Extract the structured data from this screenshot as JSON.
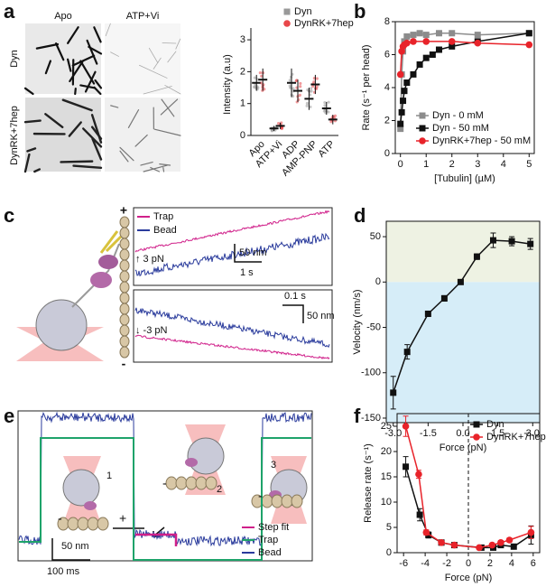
{
  "figure": {
    "panel_labels": [
      "a",
      "b",
      "c",
      "d",
      "e",
      "f"
    ],
    "image_columns": [
      "Apo",
      "ATP+Vi"
    ],
    "image_rows": [
      "Dyn",
      "DynRK+7hep"
    ],
    "trace_c": {
      "legend": [
        "Trap",
        "Bead"
      ],
      "top_force": "↑ 3 pN",
      "top_scale_y": "50 nm",
      "top_scale_x": "1 s",
      "bottom_force": "↓ -3 pN",
      "bottom_scale_x": "0.1 s",
      "bottom_scale_y": "50 nm",
      "plus": "+",
      "minus": "-"
    },
    "trace_e": {
      "states": [
        "1",
        "2",
        "3"
      ],
      "signs": [
        "-",
        "+",
        "-",
        "-"
      ],
      "scale_y": "50 nm",
      "scale_x": "100 ms",
      "legend": [
        "Step fit",
        "Trap",
        "Bead"
      ]
    }
  },
  "chart_data": [
    {
      "type": "dot",
      "ylabel": "Intensity (a.u)",
      "categories": [
        "Apo",
        "ATP+Vi",
        "ADP",
        "AMP-PNP",
        "ATP"
      ],
      "series": [
        {
          "name": "Dyn",
          "color": "#999999",
          "marker": "square",
          "values": [
            1.65,
            0.22,
            1.65,
            1.15,
            0.85
          ],
          "errors": [
            0.25,
            0.08,
            0.45,
            0.35,
            0.2
          ]
        },
        {
          "name": "DynRK+7hep",
          "color": "#e8474a",
          "marker": "circle",
          "values": [
            1.75,
            0.3,
            1.4,
            1.6,
            0.5
          ],
          "errors": [
            0.35,
            0.1,
            0.35,
            0.3,
            0.15
          ]
        }
      ],
      "ylim": [
        0,
        3.2
      ],
      "yticks": [
        0,
        1,
        2,
        3
      ],
      "legend": "top"
    },
    {
      "type": "line",
      "xlabel": "[Tubulin] (µM)",
      "ylabel": "Rate (s⁻¹ per head)",
      "series": [
        {
          "name": "Dyn - 0 mM",
          "color": "#8c8c8c",
          "marker": "square",
          "x": [
            0,
            0.05,
            0.1,
            0.15,
            0.25,
            0.5,
            0.75,
            1,
            1.5,
            2,
            3,
            5
          ],
          "values": [
            1.5,
            4.8,
            6.2,
            6.8,
            7.1,
            7.2,
            7.3,
            7.2,
            7.3,
            7.3,
            7.2,
            7.3
          ]
        },
        {
          "name": "Dyn - 50 mM",
          "color": "#111111",
          "marker": "square",
          "x": [
            0,
            0.05,
            0.1,
            0.15,
            0.25,
            0.5,
            0.75,
            1,
            1.25,
            1.5,
            2,
            3,
            5
          ],
          "values": [
            1.8,
            2.5,
            3.2,
            3.8,
            4.3,
            4.8,
            5.4,
            5.8,
            6.0,
            6.3,
            6.5,
            6.8,
            7.3
          ]
        },
        {
          "name": "DynRK+7hep - 50 mM",
          "color": "#e8232a",
          "marker": "circle",
          "x": [
            0,
            0.05,
            0.1,
            0.15,
            0.25,
            0.5,
            1,
            2,
            3,
            5
          ],
          "values": [
            4.8,
            6.2,
            6.5,
            6.6,
            6.7,
            6.8,
            6.8,
            6.8,
            6.7,
            6.6
          ]
        }
      ],
      "xlim": [
        -0.2,
        5.2
      ],
      "xticks": [
        0,
        1,
        2,
        3,
        4,
        5
      ],
      "ylim": [
        0,
        8
      ],
      "yticks": [
        0,
        2,
        4,
        6,
        8
      ],
      "legend": "lower right"
    },
    {
      "type": "line",
      "xlabel": "Force (pN)",
      "ylabel": "Velocity (nm/s)",
      "series": [
        {
          "color": "#111111",
          "marker": "square",
          "x": [
            -3.0,
            -2.4,
            -1.5,
            -0.8,
            -0.1,
            0.6,
            1.3,
            2.1,
            2.9
          ],
          "values": [
            -122,
            -77,
            -35,
            -18,
            0,
            28,
            46,
            45,
            42
          ],
          "errors": [
            18,
            8,
            3,
            3,
            2,
            3,
            8,
            5,
            6
          ]
        }
      ],
      "xlim": [
        -3.3,
        3.3
      ],
      "xticks": [
        {
          "value": -3,
          "label": "-3.0"
        },
        {
          "value": -1.5,
          "label": "-1.5"
        },
        {
          "value": 0,
          "label": "0.0"
        },
        {
          "value": 1.5,
          "label": "1.5"
        },
        {
          "value": 3,
          "label": "3.0"
        }
      ],
      "ylim": [
        -155,
        67
      ],
      "yticks": [
        -150,
        -100,
        -50,
        0,
        50
      ],
      "shade": [
        "#eef2e3",
        "#d6edf8"
      ]
    },
    {
      "type": "line",
      "xlabel": "Force (pN)",
      "ylabel": "Release rate (s⁻¹)",
      "series": [
        {
          "name": "Dyn",
          "color": "#111111",
          "marker": "square",
          "x": [
            -5.8,
            -4.5,
            -3.7,
            -2.5,
            -1.3,
            1.2,
            2.3,
            3.0,
            4.2,
            5.8
          ],
          "values": [
            17,
            7.5,
            3.5,
            2,
            1.5,
            1,
            1,
            1.5,
            1.2,
            3.5
          ],
          "errors": [
            2,
            1.2,
            0.6,
            0.4,
            0.3,
            0.4,
            0.3,
            0.4,
            0.3,
            1.8
          ]
        },
        {
          "name": "DynRK+7hep",
          "color": "#e8232a",
          "marker": "circle",
          "x": [
            -5.8,
            -4.6,
            -3.9,
            -2.5,
            -1.3,
            1.0,
            2.2,
            3.0,
            3.8,
            5.8
          ],
          "values": [
            25,
            15.5,
            4,
            2,
            1.5,
            1,
            1.5,
            2,
            2.5,
            4
          ],
          "errors": [
            2,
            0.8,
            0.5,
            0.4,
            0.3,
            0.3,
            0.3,
            0.4,
            0.4,
            1.2
          ]
        }
      ],
      "xlim": [
        -6.6,
        6.6
      ],
      "xticks": [
        -6,
        -4,
        -2,
        0,
        2,
        4,
        6
      ],
      "ylim": [
        0,
        27.5
      ],
      "yticks": [
        0,
        5,
        10,
        15,
        20,
        25
      ],
      "legend": "upper right",
      "zero_line": true
    }
  ]
}
